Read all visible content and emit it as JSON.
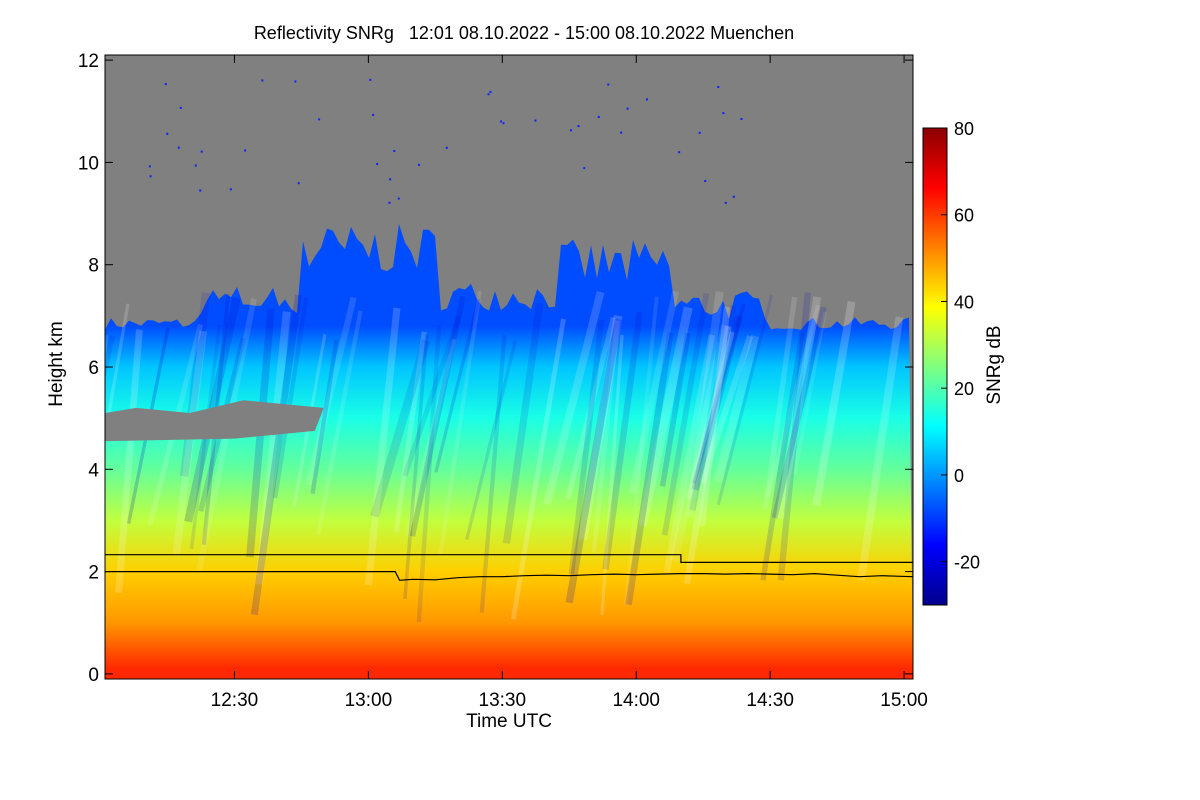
{
  "chart_data": {
    "type": "heatmap",
    "title": "Reflectivity SNRg   12:01 08.10.2022 - 15:00 08.10.2022 Muenchen",
    "xlabel": "Time UTC",
    "ylabel": "Height km",
    "colorbar_label": "SNRg dB",
    "xlim_minutes": [
      721,
      902
    ],
    "x_ticks": [
      {
        "minute": 750,
        "label": "12:30"
      },
      {
        "minute": 780,
        "label": "13:00"
      },
      {
        "minute": 810,
        "label": "13:30"
      },
      {
        "minute": 840,
        "label": "14:00"
      },
      {
        "minute": 870,
        "label": "14:30"
      },
      {
        "minute": 900,
        "label": "15:00"
      }
    ],
    "ylim": [
      -0.1,
      12.1
    ],
    "y_ticks": [
      0,
      2,
      4,
      6,
      8,
      10,
      12
    ],
    "colorbar_range": [
      -30,
      80
    ],
    "colorbar_ticks": [
      -20,
      0,
      20,
      40,
      60,
      80
    ],
    "no_signal_color": "#808080",
    "colormap": [
      "#00008b",
      "#0000ff",
      "#0080ff",
      "#00ffff",
      "#80ff80",
      "#ffff00",
      "#ff8000",
      "#ff0000",
      "#8b0000"
    ],
    "approx_snr_by_height": [
      {
        "height_km": 0.1,
        "snr_db": 62
      },
      {
        "height_km": 1.0,
        "snr_db": 50
      },
      {
        "height_km": 2.0,
        "snr_db": 44
      },
      {
        "height_km": 3.0,
        "snr_db": 32
      },
      {
        "height_km": 4.0,
        "snr_db": 22
      },
      {
        "height_km": 5.0,
        "snr_db": 14
      },
      {
        "height_km": 6.0,
        "snr_db": 5
      },
      {
        "height_km": 6.8,
        "snr_db": -8
      }
    ],
    "series": [
      {
        "name": "upper layer line",
        "color": "#000000",
        "x_minutes": [
          721,
          786,
          786,
          850,
          850,
          902
        ],
        "y_km": [
          2.33,
          2.33,
          2.33,
          2.33,
          2.18,
          2.18
        ]
      },
      {
        "name": "lower layer line",
        "color": "#000000",
        "x_minutes": [
          721,
          786,
          787,
          790,
          795,
          800,
          805,
          810,
          815,
          820,
          825,
          830,
          835,
          840,
          845,
          850,
          855,
          860,
          865,
          870,
          875,
          880,
          885,
          890,
          895,
          902
        ],
        "y_km": [
          2.0,
          2.0,
          1.83,
          1.85,
          1.84,
          1.88,
          1.9,
          1.9,
          1.92,
          1.93,
          1.92,
          1.94,
          1.95,
          1.94,
          1.95,
          1.96,
          1.96,
          1.95,
          1.96,
          1.95,
          1.94,
          1.96,
          1.93,
          1.9,
          1.92,
          1.9
        ]
      }
    ]
  }
}
